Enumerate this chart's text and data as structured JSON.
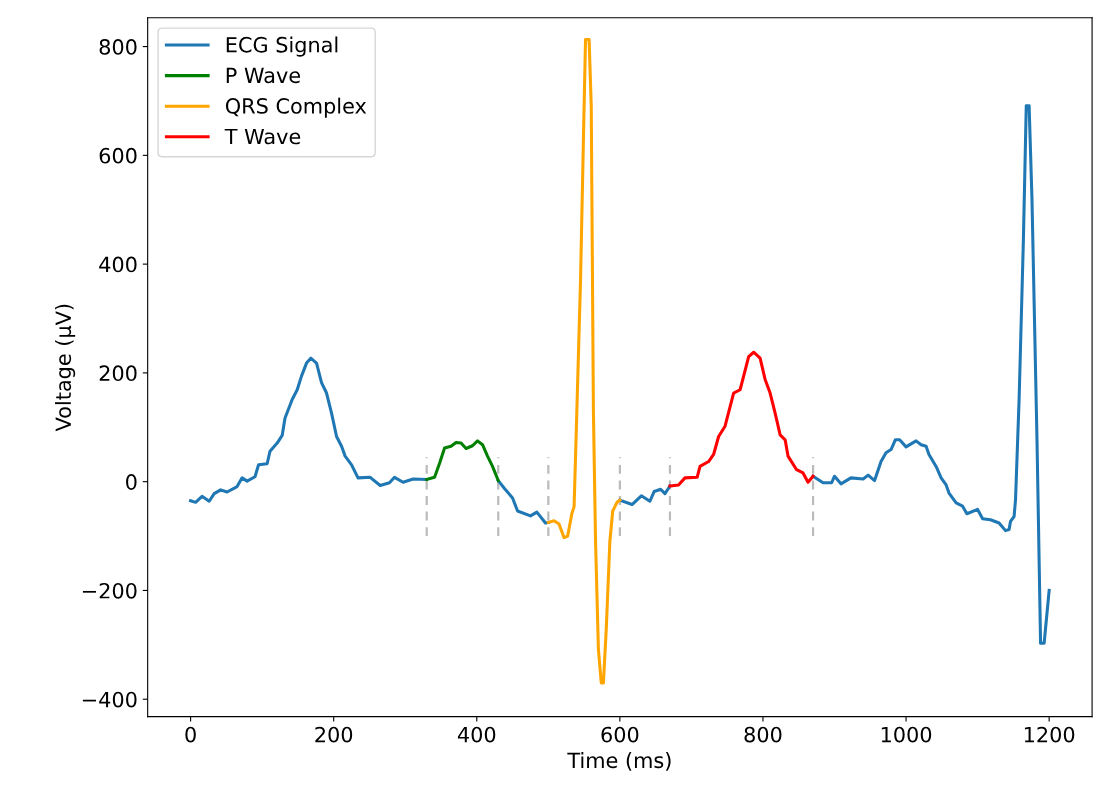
{
  "chart_data": {
    "type": "line",
    "xlabel": "Time (ms)",
    "ylabel": "Voltage (µV)",
    "xlim": [
      -60,
      1260
    ],
    "ylim": [
      -432,
      853
    ],
    "xticks": [
      0,
      200,
      400,
      600,
      800,
      1000,
      1200
    ],
    "yticks": [
      {
        "value": -400,
        "label": "−400"
      },
      {
        "value": -200,
        "label": "−200"
      },
      0,
      200,
      400,
      600,
      800
    ],
    "grid": false,
    "legend": "top left",
    "marker": "none",
    "series": [
      {
        "name": "ECG Signal",
        "color": "#1f77b4",
        "x": [
          0,
          7,
          16,
          26,
          33,
          42,
          51,
          65,
          72,
          79,
          90,
          95,
          107,
          111,
          121,
          128,
          132,
          142,
          149,
          155,
          162,
          168,
          176,
          183,
          190,
          197,
          204,
          211,
          216,
          225,
          234,
          251,
          265,
          278,
          285,
          297,
          311,
          330,
          380,
          430,
          439,
          450,
          457,
          475,
          484,
          496,
          500,
          550,
          600,
          617,
          630,
          642,
          648,
          657,
          663,
          670,
          770,
          870,
          884,
          896,
          900,
          909,
          923,
          940,
          947,
          956,
          965,
          972,
          979,
          985,
          991,
          1000,
          1014,
          1021,
          1028,
          1032,
          1042,
          1049,
          1056,
          1060,
          1070,
          1079,
          1085,
          1100,
          1107,
          1118,
          1130,
          1139,
          1144,
          1146,
          1151,
          1153,
          1158,
          1164,
          1168,
          1172,
          1176,
          1183,
          1188,
          1193,
          1200
        ],
        "values": [
          -35,
          -38,
          -27,
          -36,
          -22,
          -15,
          -19,
          -9,
          7,
          1,
          9,
          31,
          33,
          56,
          71,
          85,
          117,
          151,
          169,
          194,
          218,
          227,
          218,
          182,
          163,
          126,
          83,
          65,
          47,
          31,
          7,
          8,
          -7,
          -2,
          8,
          -1,
          5,
          4,
          null,
          2,
          -13,
          -30,
          -54,
          -63,
          -56,
          -76,
          -75,
          null,
          -34,
          -42,
          -26,
          -36,
          -18,
          -14,
          -22,
          -8,
          null,
          10,
          -2,
          -2,
          10,
          -4,
          7,
          5,
          12,
          2,
          37,
          53,
          59,
          77,
          77,
          64,
          75,
          68,
          65,
          50,
          28,
          7,
          -6,
          -21,
          -39,
          -45,
          -59,
          -51,
          -68,
          -70,
          -76,
          -90,
          -88,
          -73,
          -64,
          -33,
          151,
          445,
          691,
          691,
          519,
          77,
          -297,
          -297,
          -200
        ]
      },
      {
        "name": "P Wave",
        "color": "#008000",
        "x": [
          330,
          341,
          348,
          355,
          364,
          371,
          378,
          385,
          394,
          401,
          408,
          415,
          422,
          430
        ],
        "values": [
          4,
          8,
          34,
          62,
          65,
          72,
          71,
          61,
          66,
          75,
          68,
          47,
          28,
          2
        ]
      },
      {
        "name": "QRS Complex",
        "color": "#ffa500",
        "x": [
          500,
          508,
          515,
          522,
          527,
          533,
          536,
          539,
          545,
          550,
          552,
          557,
          560,
          563,
          566,
          570,
          574,
          577,
          581,
          586,
          590,
          596,
          600
        ],
        "values": [
          -75,
          -72,
          -78,
          -103,
          -100,
          -58,
          -46,
          90,
          370,
          690,
          813,
          813,
          690,
          130,
          -110,
          -309,
          -370,
          -370,
          -270,
          -110,
          -54,
          -38,
          -34
        ]
      },
      {
        "name": "T Wave",
        "color": "#ff0000",
        "x": [
          670,
          682,
          691,
          708,
          712,
          724,
          731,
          738,
          747,
          759,
          768,
          773,
          780,
          787,
          796,
          803,
          810,
          817,
          824,
          831,
          835,
          847,
          856,
          863,
          870
        ],
        "values": [
          -8,
          -6,
          7,
          8,
          28,
          37,
          50,
          83,
          102,
          163,
          169,
          194,
          230,
          238,
          227,
          188,
          163,
          126,
          86,
          77,
          47,
          22,
          16,
          -1,
          10
        ]
      },
      {
        "color": "#bbbbbb",
        "line_style": "dashed",
        "x": [
          330,
          330
        ],
        "values": [
          -100,
          45
        ]
      },
      {
        "color": "#bbbbbb",
        "line_style": "dashed",
        "x": [
          430,
          430
        ],
        "values": [
          -100,
          45
        ]
      },
      {
        "color": "#bbbbbb",
        "line_style": "dashed",
        "x": [
          500,
          500
        ],
        "values": [
          -100,
          45
        ]
      },
      {
        "color": "#bbbbbb",
        "line_style": "dashed",
        "x": [
          600,
          600
        ],
        "values": [
          -100,
          45
        ]
      },
      {
        "color": "#bbbbbb",
        "line_style": "dashed",
        "x": [
          670,
          670
        ],
        "values": [
          -100,
          45
        ]
      },
      {
        "color": "#bbbbbb",
        "line_style": "dashed",
        "x": [
          870,
          870
        ],
        "values": [
          -100,
          45
        ]
      }
    ]
  }
}
